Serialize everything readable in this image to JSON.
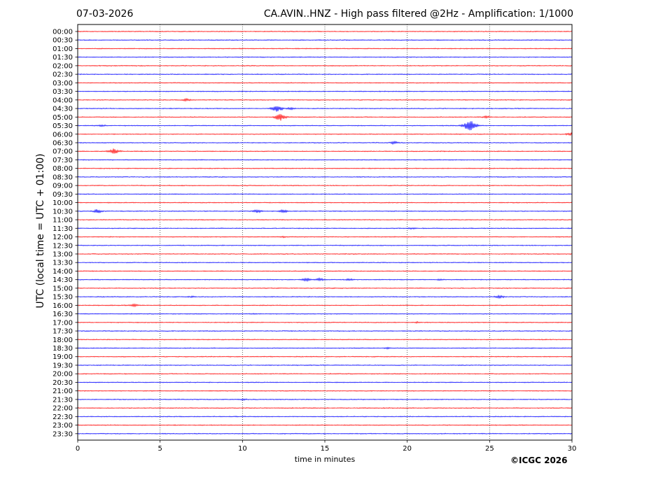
{
  "chart_data": {
    "type": "line",
    "subtype": "seismogram-helicorder",
    "date": "07-03-2026",
    "title": "CA.AVIN..HNZ - High pass filtered @2Hz - Amplification: 1/1000",
    "xlabel": "time in minutes",
    "ylabel": "UTC (local time = UTC + 01:00)",
    "xlim": [
      0,
      30
    ],
    "xticks": [
      0,
      5,
      10,
      15,
      20,
      25,
      30
    ],
    "vertical_gridlines": [
      5,
      10,
      15,
      20,
      25
    ],
    "grid": "vertical dotted",
    "row_labels": [
      "00:00",
      "00:30",
      "01:00",
      "01:30",
      "02:00",
      "02:30",
      "03:00",
      "03:30",
      "04:00",
      "04:30",
      "05:00",
      "05:30",
      "06:00",
      "06:30",
      "07:00",
      "07:30",
      "08:00",
      "08:30",
      "09:00",
      "09:30",
      "10:00",
      "10:30",
      "11:00",
      "11:30",
      "12:00",
      "12:30",
      "13:00",
      "13:30",
      "14:00",
      "14:30",
      "15:00",
      "15:30",
      "16:00",
      "16:30",
      "17:00",
      "17:30",
      "18:00",
      "18:30",
      "19:00",
      "19:30",
      "20:00",
      "20:30",
      "21:00",
      "21:30",
      "22:00",
      "22:30",
      "23:00",
      "23:30"
    ],
    "trace_colors": [
      "#ff0000",
      "#0000ff"
    ],
    "events": [
      {
        "row": "04:00",
        "minute": 6.6,
        "amplitude": 0.25
      },
      {
        "row": "04:30",
        "minute": 12.1,
        "amplitude": 0.6
      },
      {
        "row": "04:30",
        "minute": 12.9,
        "amplitude": 0.2
      },
      {
        "row": "05:00",
        "minute": 12.3,
        "amplitude": 0.7
      },
      {
        "row": "05:00",
        "minute": 24.8,
        "amplitude": 0.2
      },
      {
        "row": "05:30",
        "minute": 23.8,
        "amplitude": 0.95
      },
      {
        "row": "05:30",
        "minute": 1.5,
        "amplitude": 0.15
      },
      {
        "row": "06:00",
        "minute": 29.9,
        "amplitude": 0.25
      },
      {
        "row": "06:30",
        "minute": 19.2,
        "amplitude": 0.25
      },
      {
        "row": "07:00",
        "minute": 2.2,
        "amplitude": 0.55
      },
      {
        "row": "10:30",
        "minute": 1.2,
        "amplitude": 0.35
      },
      {
        "row": "10:30",
        "minute": 10.9,
        "amplitude": 0.3
      },
      {
        "row": "10:30",
        "minute": 12.5,
        "amplitude": 0.3
      },
      {
        "row": "11:30",
        "minute": 20.3,
        "amplitude": 0.12
      },
      {
        "row": "12:00",
        "minute": 12.5,
        "amplitude": 0.12
      },
      {
        "row": "14:30",
        "minute": 13.9,
        "amplitude": 0.3
      },
      {
        "row": "14:30",
        "minute": 14.7,
        "amplitude": 0.25
      },
      {
        "row": "14:30",
        "minute": 16.5,
        "amplitude": 0.15
      },
      {
        "row": "14:30",
        "minute": 22.0,
        "amplitude": 0.12
      },
      {
        "row": "15:30",
        "minute": 25.6,
        "amplitude": 0.3
      },
      {
        "row": "15:30",
        "minute": 6.9,
        "amplitude": 0.1
      },
      {
        "row": "16:00",
        "minute": 3.4,
        "amplitude": 0.25
      },
      {
        "row": "16:30",
        "minute": 10.7,
        "amplitude": 0.1
      },
      {
        "row": "17:00",
        "minute": 20.6,
        "amplitude": 0.12
      },
      {
        "row": "18:30",
        "minute": 18.8,
        "amplitude": 0.12
      },
      {
        "row": "21:30",
        "minute": 10.1,
        "amplitude": 0.1
      }
    ]
  },
  "copyright": "©ICGC 2026"
}
